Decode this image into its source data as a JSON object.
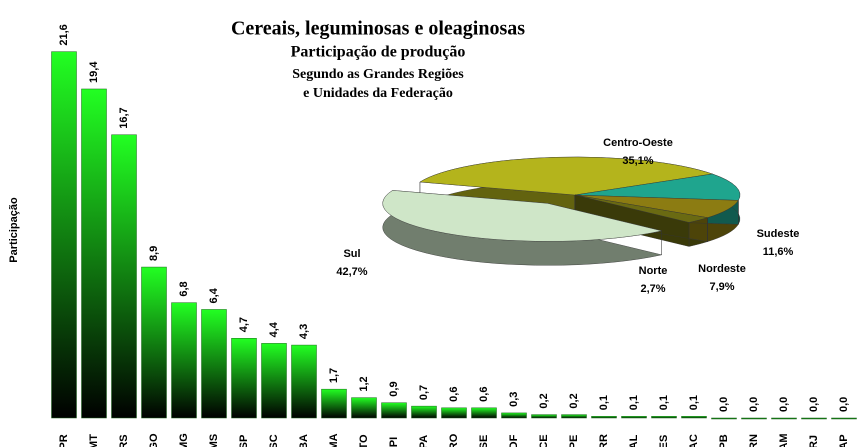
{
  "chart_data": [
    {
      "type": "bar",
      "title": "Cereais, leguminosas e oleaginosas",
      "subtitle": [
        "Participação de produção",
        "Segundo as Grandes Regiões",
        "e Unidades da Federação"
      ],
      "ylabel": "Participação",
      "categories": [
        "PR",
        "MT",
        "RS",
        "GO",
        "MG",
        "MS",
        "SP",
        "SC",
        "BA",
        "MA",
        "TO",
        "PI",
        "PA",
        "RO",
        "SE",
        "DF",
        "CE",
        "PE",
        "RR",
        "AL",
        "ES",
        "AC",
        "PB",
        "RN",
        "AM",
        "RJ",
        "AP"
      ],
      "values": [
        21.6,
        19.4,
        16.7,
        8.9,
        6.8,
        6.4,
        4.7,
        4.4,
        4.3,
        1.7,
        1.2,
        0.9,
        0.7,
        0.6,
        0.6,
        0.3,
        0.2,
        0.2,
        0.1,
        0.1,
        0.1,
        0.1,
        0.0,
        0.0,
        0.0,
        0.0,
        0.0
      ],
      "value_labels": [
        "21,6",
        "19,4",
        "16,7",
        "8,9",
        "6,8",
        "6,4",
        "4,7",
        "4,4",
        "4,3",
        "1,7",
        "1,2",
        "0,9",
        "0,7",
        "0,6",
        "0,6",
        "0,3",
        "0,2",
        "0,2",
        "0,1",
        "0,1",
        "0,1",
        "0,1",
        "0,0",
        "0,0",
        "0,0",
        "0,0",
        "0,0"
      ],
      "ylim": [
        0,
        25
      ],
      "color": "#22ff22"
    },
    {
      "type": "pie",
      "categories": [
        "Centro-Oeste",
        "Sudeste",
        "Nordeste",
        "Norte",
        "Sul"
      ],
      "values": [
        35.1,
        11.6,
        7.9,
        2.7,
        42.7
      ],
      "value_labels": [
        "35,1%",
        "11,6%",
        "7,9%",
        "2,7%",
        "42,7%"
      ],
      "colors": [
        "#b4b41c",
        "#1fa58e",
        "#8c7c12",
        "#6a6a12",
        "#cfe6c8"
      ]
    }
  ]
}
